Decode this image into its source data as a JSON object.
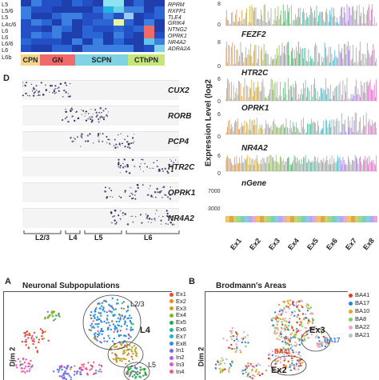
{
  "heatmap": {
    "row_labels": [
      "L5",
      "L5/6",
      "L5",
      "L4c/6",
      "L6",
      "L6",
      "L6/6",
      "L6",
      "L6b"
    ],
    "gene_labels": [
      "RPRM",
      "RXFP1",
      "TLE4",
      "GRIK4",
      "NTNG2",
      "OPRK1",
      "NR4A2",
      "ADRA2A"
    ],
    "groups": [
      {
        "label": "CPN",
        "color": "#f5d58a"
      },
      {
        "label": "GN",
        "color": "#ef6b6b"
      },
      {
        "label": "SCPN",
        "color": "#7fd3e3"
      },
      {
        "label": "CThPN",
        "color": "#c7e67a"
      }
    ]
  },
  "panel_d": {
    "letter": "D",
    "genes": [
      "CUX2",
      "RORB",
      "PCP4",
      "HTR2C",
      "OPRK1",
      "NR4A2"
    ],
    "layers": [
      "L2/3",
      "L4",
      "L5",
      "L6"
    ]
  },
  "expression": {
    "ylabel": "Expression Level (log2",
    "genes": [
      "FEZF2",
      "HTR2C",
      "OPRK1",
      "NR4A2",
      "nGene"
    ],
    "ticks_top": [
      "8",
      "0"
    ],
    "ticks_rows": [
      [
        "8",
        "0"
      ],
      [
        "6",
        "0"
      ],
      [
        "6",
        "0"
      ],
      [
        "6",
        "0"
      ],
      [
        "7000",
        "3000"
      ]
    ],
    "clusters": [
      "Ex1",
      "Ex2",
      "Ex3",
      "Ex4",
      "Ex5",
      "Ex6",
      "Ex7",
      "Ex8"
    ]
  },
  "panel_a": {
    "letter": "A",
    "title": "Neuronal Subpopulations",
    "yaxis": "Dim 2",
    "annotations": [
      "L2/3",
      "L4",
      "L5"
    ],
    "legend": [
      {
        "label": "Ex1",
        "color": "#e04a3b"
      },
      {
        "label": "Ex2",
        "color": "#e9891a"
      },
      {
        "label": "Ex3",
        "color": "#c9a227"
      },
      {
        "label": "Ex4",
        "color": "#7ab82e"
      },
      {
        "label": "Ex5",
        "color": "#2aa84a"
      },
      {
        "label": "Ex6",
        "color": "#28b58f"
      },
      {
        "label": "Ex7",
        "color": "#1fb2c9"
      },
      {
        "label": "Ex8",
        "color": "#2d8fe0"
      },
      {
        "label": "In1",
        "color": "#7a6ae6"
      },
      {
        "label": "In2",
        "color": "#b25ee8"
      },
      {
        "label": "In3",
        "color": "#e256c7"
      },
      {
        "label": "In4",
        "color": "#ef5a8d"
      }
    ]
  },
  "panel_b": {
    "letter": "B",
    "title": "Brodmann's Areas",
    "yaxis": "Dim 2",
    "annotations": [
      "Ex3",
      "BA17",
      "BA41",
      "Ex2"
    ],
    "legend": [
      {
        "label": "BA41",
        "color": "#e0392f"
      },
      {
        "label": "BA17",
        "color": "#2f7de0"
      },
      {
        "label": "BA10",
        "color": "#f0a11f"
      },
      {
        "label": "BA8",
        "color": "#7bd35a"
      },
      {
        "label": "BA22",
        "color": "#f5a3c0"
      },
      {
        "label": "BA21",
        "color": "#bfbfbf"
      }
    ]
  }
}
